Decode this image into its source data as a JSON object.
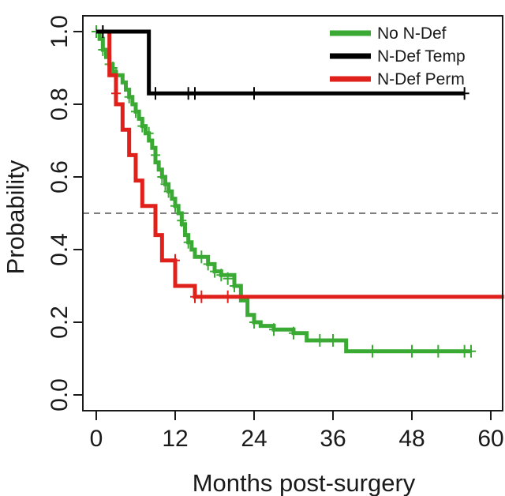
{
  "chart_data": {
    "type": "line",
    "subtype": "kaplan-meier step curves with censor marks",
    "title": "",
    "xlabel": "Months post-surgery",
    "ylabel": "Probability",
    "xlim": [
      0,
      60
    ],
    "ylim": [
      0,
      1
    ],
    "xticks": [
      0,
      12,
      24,
      36,
      48,
      60
    ],
    "yticks": [
      0.0,
      0.2,
      0.4,
      0.6,
      0.8,
      1.0
    ],
    "xtick_labels": [
      "0",
      "12",
      "24",
      "36",
      "48",
      "60"
    ],
    "ytick_labels": [
      "0.0",
      "0.2",
      "0.4",
      "0.6",
      "0.8",
      "1.0"
    ],
    "reference_line": {
      "y": 0.5,
      "style": "dashed",
      "color": "#555555"
    },
    "grid": false,
    "legend_position": "top-right",
    "series": [
      {
        "name": "No N-Def",
        "color": "#3aaa35",
        "steps": [
          [
            0,
            1.0
          ],
          [
            0.5,
            0.98
          ],
          [
            1,
            0.95
          ],
          [
            1.5,
            0.93
          ],
          [
            2,
            0.91
          ],
          [
            2.5,
            0.89
          ],
          [
            3,
            0.88
          ],
          [
            4,
            0.86
          ],
          [
            4.5,
            0.84
          ],
          [
            5,
            0.82
          ],
          [
            5.5,
            0.8
          ],
          [
            6,
            0.78
          ],
          [
            6.5,
            0.76
          ],
          [
            7,
            0.74
          ],
          [
            7.5,
            0.72
          ],
          [
            8,
            0.7
          ],
          [
            8.5,
            0.68
          ],
          [
            9,
            0.64
          ],
          [
            9.5,
            0.62
          ],
          [
            10,
            0.6
          ],
          [
            10.5,
            0.58
          ],
          [
            11,
            0.56
          ],
          [
            11.5,
            0.54
          ],
          [
            12,
            0.52
          ],
          [
            12.5,
            0.5
          ],
          [
            13,
            0.47
          ],
          [
            13.5,
            0.44
          ],
          [
            14,
            0.42
          ],
          [
            14.5,
            0.4
          ],
          [
            15,
            0.38
          ],
          [
            17,
            0.36
          ],
          [
            18,
            0.34
          ],
          [
            19,
            0.33
          ],
          [
            21,
            0.3
          ],
          [
            22,
            0.26
          ],
          [
            23,
            0.22
          ],
          [
            24,
            0.2
          ],
          [
            25,
            0.19
          ],
          [
            27,
            0.18
          ],
          [
            30,
            0.17
          ],
          [
            32,
            0.15
          ],
          [
            38,
            0.12
          ],
          [
            57,
            0.12
          ]
        ],
        "censor_marks": [
          [
            0,
            1.0
          ],
          [
            1,
            0.95
          ],
          [
            2,
            0.91
          ],
          [
            2.5,
            0.9
          ],
          [
            3,
            0.88
          ],
          [
            5,
            0.82
          ],
          [
            6,
            0.78
          ],
          [
            7,
            0.74
          ],
          [
            8,
            0.72
          ],
          [
            9,
            0.66
          ],
          [
            10,
            0.6
          ],
          [
            10.5,
            0.58
          ],
          [
            11,
            0.56
          ],
          [
            12,
            0.52
          ],
          [
            13,
            0.48
          ],
          [
            14,
            0.42
          ],
          [
            16,
            0.38
          ],
          [
            17,
            0.36
          ],
          [
            18,
            0.34
          ],
          [
            19,
            0.33
          ],
          [
            20,
            0.32
          ],
          [
            21,
            0.3
          ],
          [
            24,
            0.2
          ],
          [
            27,
            0.18
          ],
          [
            30,
            0.17
          ],
          [
            34,
            0.15
          ],
          [
            36,
            0.15
          ],
          [
            42,
            0.12
          ],
          [
            48,
            0.12
          ],
          [
            52,
            0.12
          ],
          [
            56,
            0.12
          ],
          [
            57,
            0.12
          ]
        ]
      },
      {
        "name": "N-Def Temp",
        "color": "#000000",
        "steps": [
          [
            0,
            1.0
          ],
          [
            8,
            0.83
          ],
          [
            56,
            0.83
          ]
        ],
        "censor_marks": [
          [
            1,
            1.0
          ],
          [
            9,
            0.83
          ],
          [
            14,
            0.83
          ],
          [
            15,
            0.83
          ],
          [
            24,
            0.83
          ],
          [
            56,
            0.83
          ]
        ]
      },
      {
        "name": "N-Def Perm",
        "color": "#e0201b",
        "steps": [
          [
            0,
            1.0
          ],
          [
            2,
            0.88
          ],
          [
            3,
            0.8
          ],
          [
            4,
            0.73
          ],
          [
            5,
            0.66
          ],
          [
            6,
            0.59
          ],
          [
            7,
            0.52
          ],
          [
            9,
            0.44
          ],
          [
            10,
            0.37
          ],
          [
            12,
            0.3
          ],
          [
            15,
            0.27
          ],
          [
            62,
            0.27
          ]
        ],
        "censor_marks": [
          [
            1,
            1.0
          ],
          [
            3,
            0.83
          ],
          [
            12,
            0.37
          ],
          [
            15,
            0.27
          ],
          [
            16,
            0.27
          ],
          [
            20,
            0.27
          ]
        ]
      }
    ]
  }
}
